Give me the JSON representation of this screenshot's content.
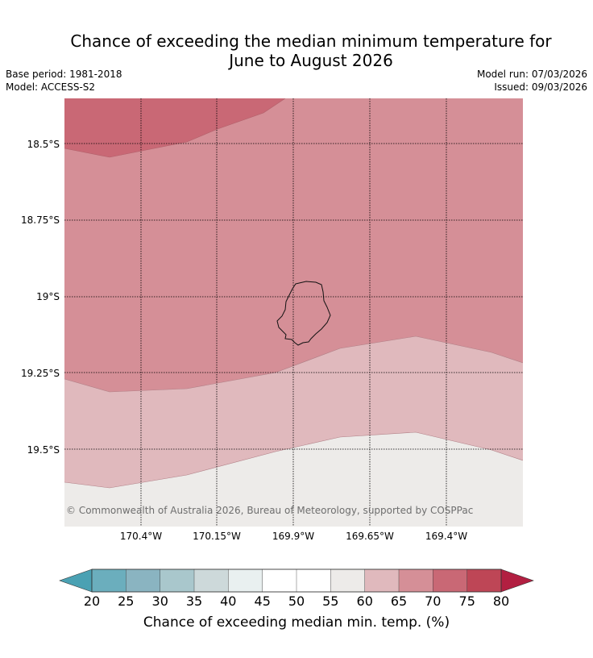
{
  "title_line1": "Chance of exceeding the median minimum temperature for",
  "title_line2": "June to August 2026",
  "meta": {
    "base_period": "Base period: 1981-2018",
    "model": "Model: ACCESS-S2",
    "model_run": "Model run: 07/03/2026",
    "issued": "Issued: 09/03/2026"
  },
  "map": {
    "lat_labels": [
      "18.5°S",
      "18.75°S",
      "19°S",
      "19.25°S",
      "19.5°S"
    ],
    "lon_labels": [
      "170.4°W",
      "170.15°W",
      "169.9°W",
      "169.65°W",
      "169.4°W"
    ],
    "copyright": "© Commonwealth of Australia 2026, Bureau of Meteorology, supported by COSPPac",
    "band_colors": {
      "p70_75": "#c96875",
      "p65_70": "#d58f97",
      "p60_65": "#e0b9bd",
      "p55_60": "#edebe9"
    }
  },
  "colorbar": {
    "ticks": [
      "20",
      "25",
      "30",
      "35",
      "40",
      "45",
      "50",
      "55",
      "60",
      "65",
      "70",
      "75",
      "80"
    ],
    "colors": [
      "#6baebd",
      "#8ab4c1",
      "#a9c7cc",
      "#cdd9da",
      "#e9f0f0",
      "#ffffff",
      "#ffffff",
      "#edebe9",
      "#e0b9bd",
      "#d58f97",
      "#c96875",
      "#be4656"
    ],
    "under_color": "#4aa1b3",
    "over_color": "#b21f41",
    "label": "Chance of exceeding median min. temp. (%)"
  }
}
